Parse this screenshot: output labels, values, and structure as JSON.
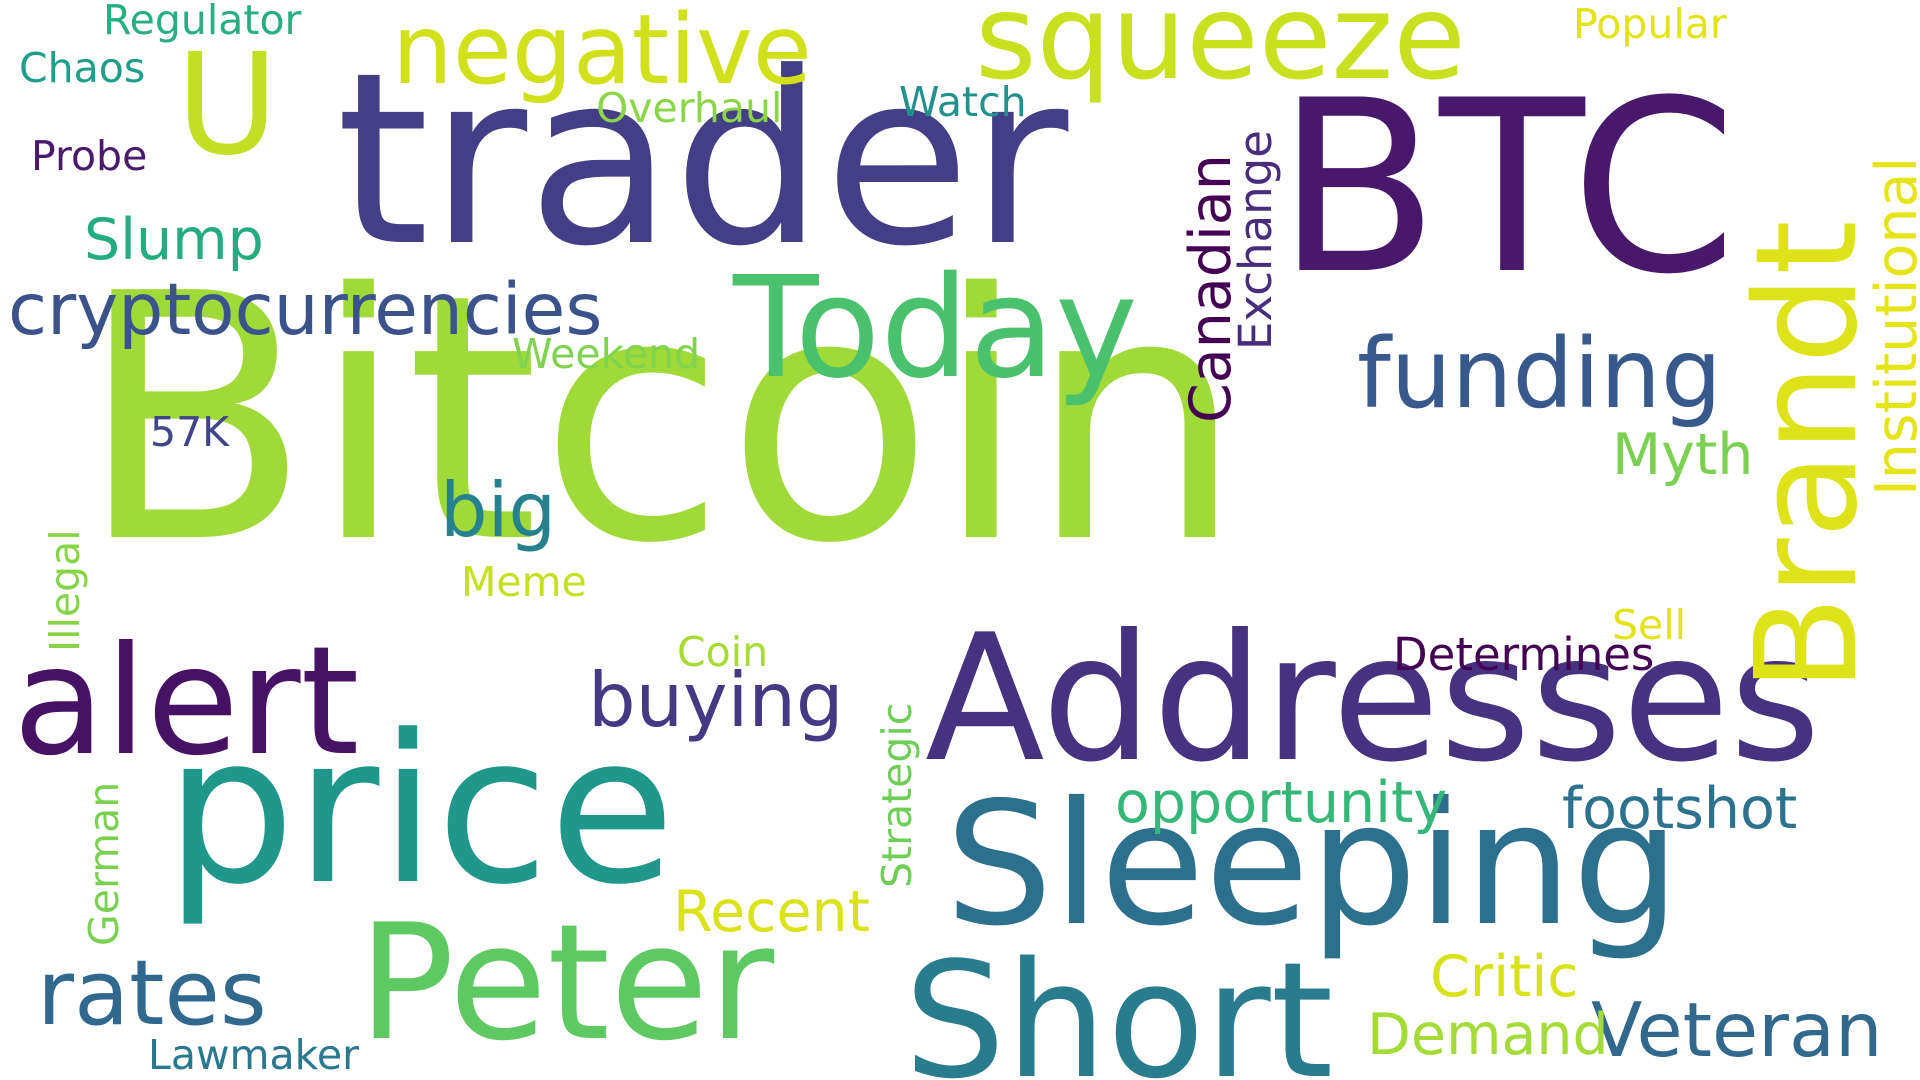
{
  "words": [
    {
      "text": "Bitcoin",
      "color": "#a0da39"
    },
    {
      "text": "trader",
      "color": "#433e85"
    },
    {
      "text": "BTC",
      "color": "#48186a"
    },
    {
      "text": "Addresses",
      "color": "#46327e"
    },
    {
      "text": "price",
      "color": "#1f978b"
    },
    {
      "text": "Sleeping",
      "color": "#2d708e"
    },
    {
      "text": "Peter",
      "color": "#5ec962"
    },
    {
      "text": "Short",
      "color": "#287c8e"
    },
    {
      "text": "Today",
      "color": "#4ac16d"
    },
    {
      "text": "Brandt",
      "color": "#dde318"
    },
    {
      "text": "squeeze",
      "color": "#c8e020"
    },
    {
      "text": "U",
      "color": "#c2df23"
    },
    {
      "text": "negative",
      "color": "#d0e11c"
    },
    {
      "text": "alert",
      "color": "#471164"
    },
    {
      "text": "funding",
      "color": "#38598c"
    },
    {
      "text": "cryptocurrencies",
      "color": "#3b528b"
    },
    {
      "text": "rates",
      "color": "#31688e"
    },
    {
      "text": "buying",
      "color": "#443a83"
    },
    {
      "text": "Veteran",
      "color": "#31688e"
    },
    {
      "text": "opportunity",
      "color": "#35b779"
    },
    {
      "text": "footshot",
      "color": "#2c728e"
    },
    {
      "text": "big",
      "color": "#26818e"
    },
    {
      "text": "Canadian",
      "color": "#440154"
    },
    {
      "text": "Exchange",
      "color": "#472d7b"
    },
    {
      "text": "Institutional",
      "color": "#e5e419"
    },
    {
      "text": "Slump",
      "color": "#25ab82"
    },
    {
      "text": "Myth",
      "color": "#7ad151"
    },
    {
      "text": "Recent",
      "color": "#dae319"
    },
    {
      "text": "Critic",
      "color": "#d8e219"
    },
    {
      "text": "Demand",
      "color": "#a5db36"
    },
    {
      "text": "Determines",
      "color": "#440154"
    },
    {
      "text": "Strategic",
      "color": "#6ece58"
    },
    {
      "text": "Regulator",
      "color": "#29af7f"
    },
    {
      "text": "Chaos",
      "color": "#1f9e89"
    },
    {
      "text": "Overhaul",
      "color": "#8bd646"
    },
    {
      "text": "Watch",
      "color": "#21918c"
    },
    {
      "text": "Popular",
      "color": "#e2e418"
    },
    {
      "text": "Probe",
      "color": "#481b6d"
    },
    {
      "text": "Weekend",
      "color": "#7fd34e"
    },
    {
      "text": "57K",
      "color": "#414487"
    },
    {
      "text": "Illegal",
      "color": "#86d549"
    },
    {
      "text": "Meme",
      "color": "#c5e021"
    },
    {
      "text": "Coin",
      "color": "#a8db34"
    },
    {
      "text": "Sell",
      "color": "#e2e418"
    },
    {
      "text": "German",
      "color": "#7ad151"
    },
    {
      "text": "Lawmaker",
      "color": "#2a788e"
    }
  ]
}
